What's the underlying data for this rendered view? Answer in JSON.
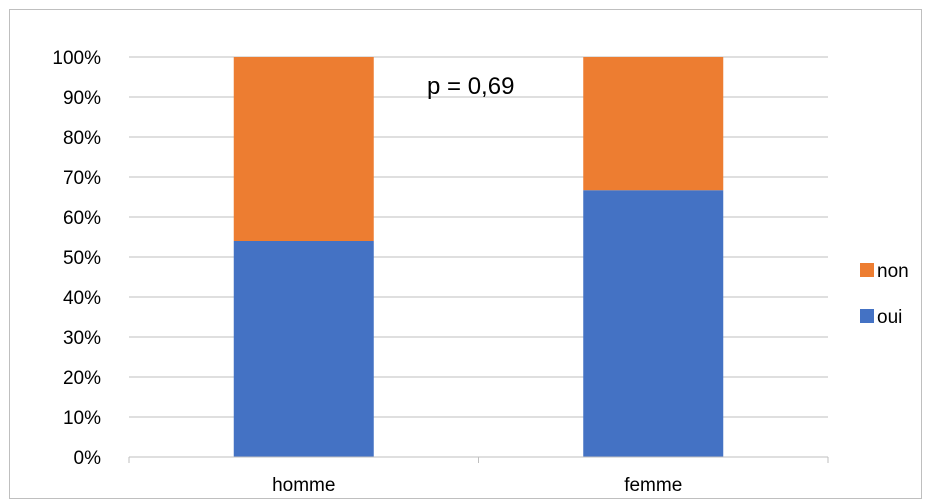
{
  "chart_data": {
    "type": "bar",
    "stacked": true,
    "categories": [
      "homme",
      "femme"
    ],
    "series": [
      {
        "name": "oui",
        "values": [
          54,
          66.7
        ],
        "color": "#4472c4"
      },
      {
        "name": "non",
        "values": [
          46,
          33.3
        ],
        "color": "#ed7d31"
      }
    ],
    "ylim": [
      0,
      100
    ],
    "yticks": [
      "0%",
      "10%",
      "20%",
      "30%",
      "40%",
      "50%",
      "60%",
      "70%",
      "80%",
      "90%",
      "100%"
    ],
    "grid": true,
    "legend_position": "right",
    "legend_order": [
      "non",
      "oui"
    ],
    "annotation": "p = 0,69"
  }
}
